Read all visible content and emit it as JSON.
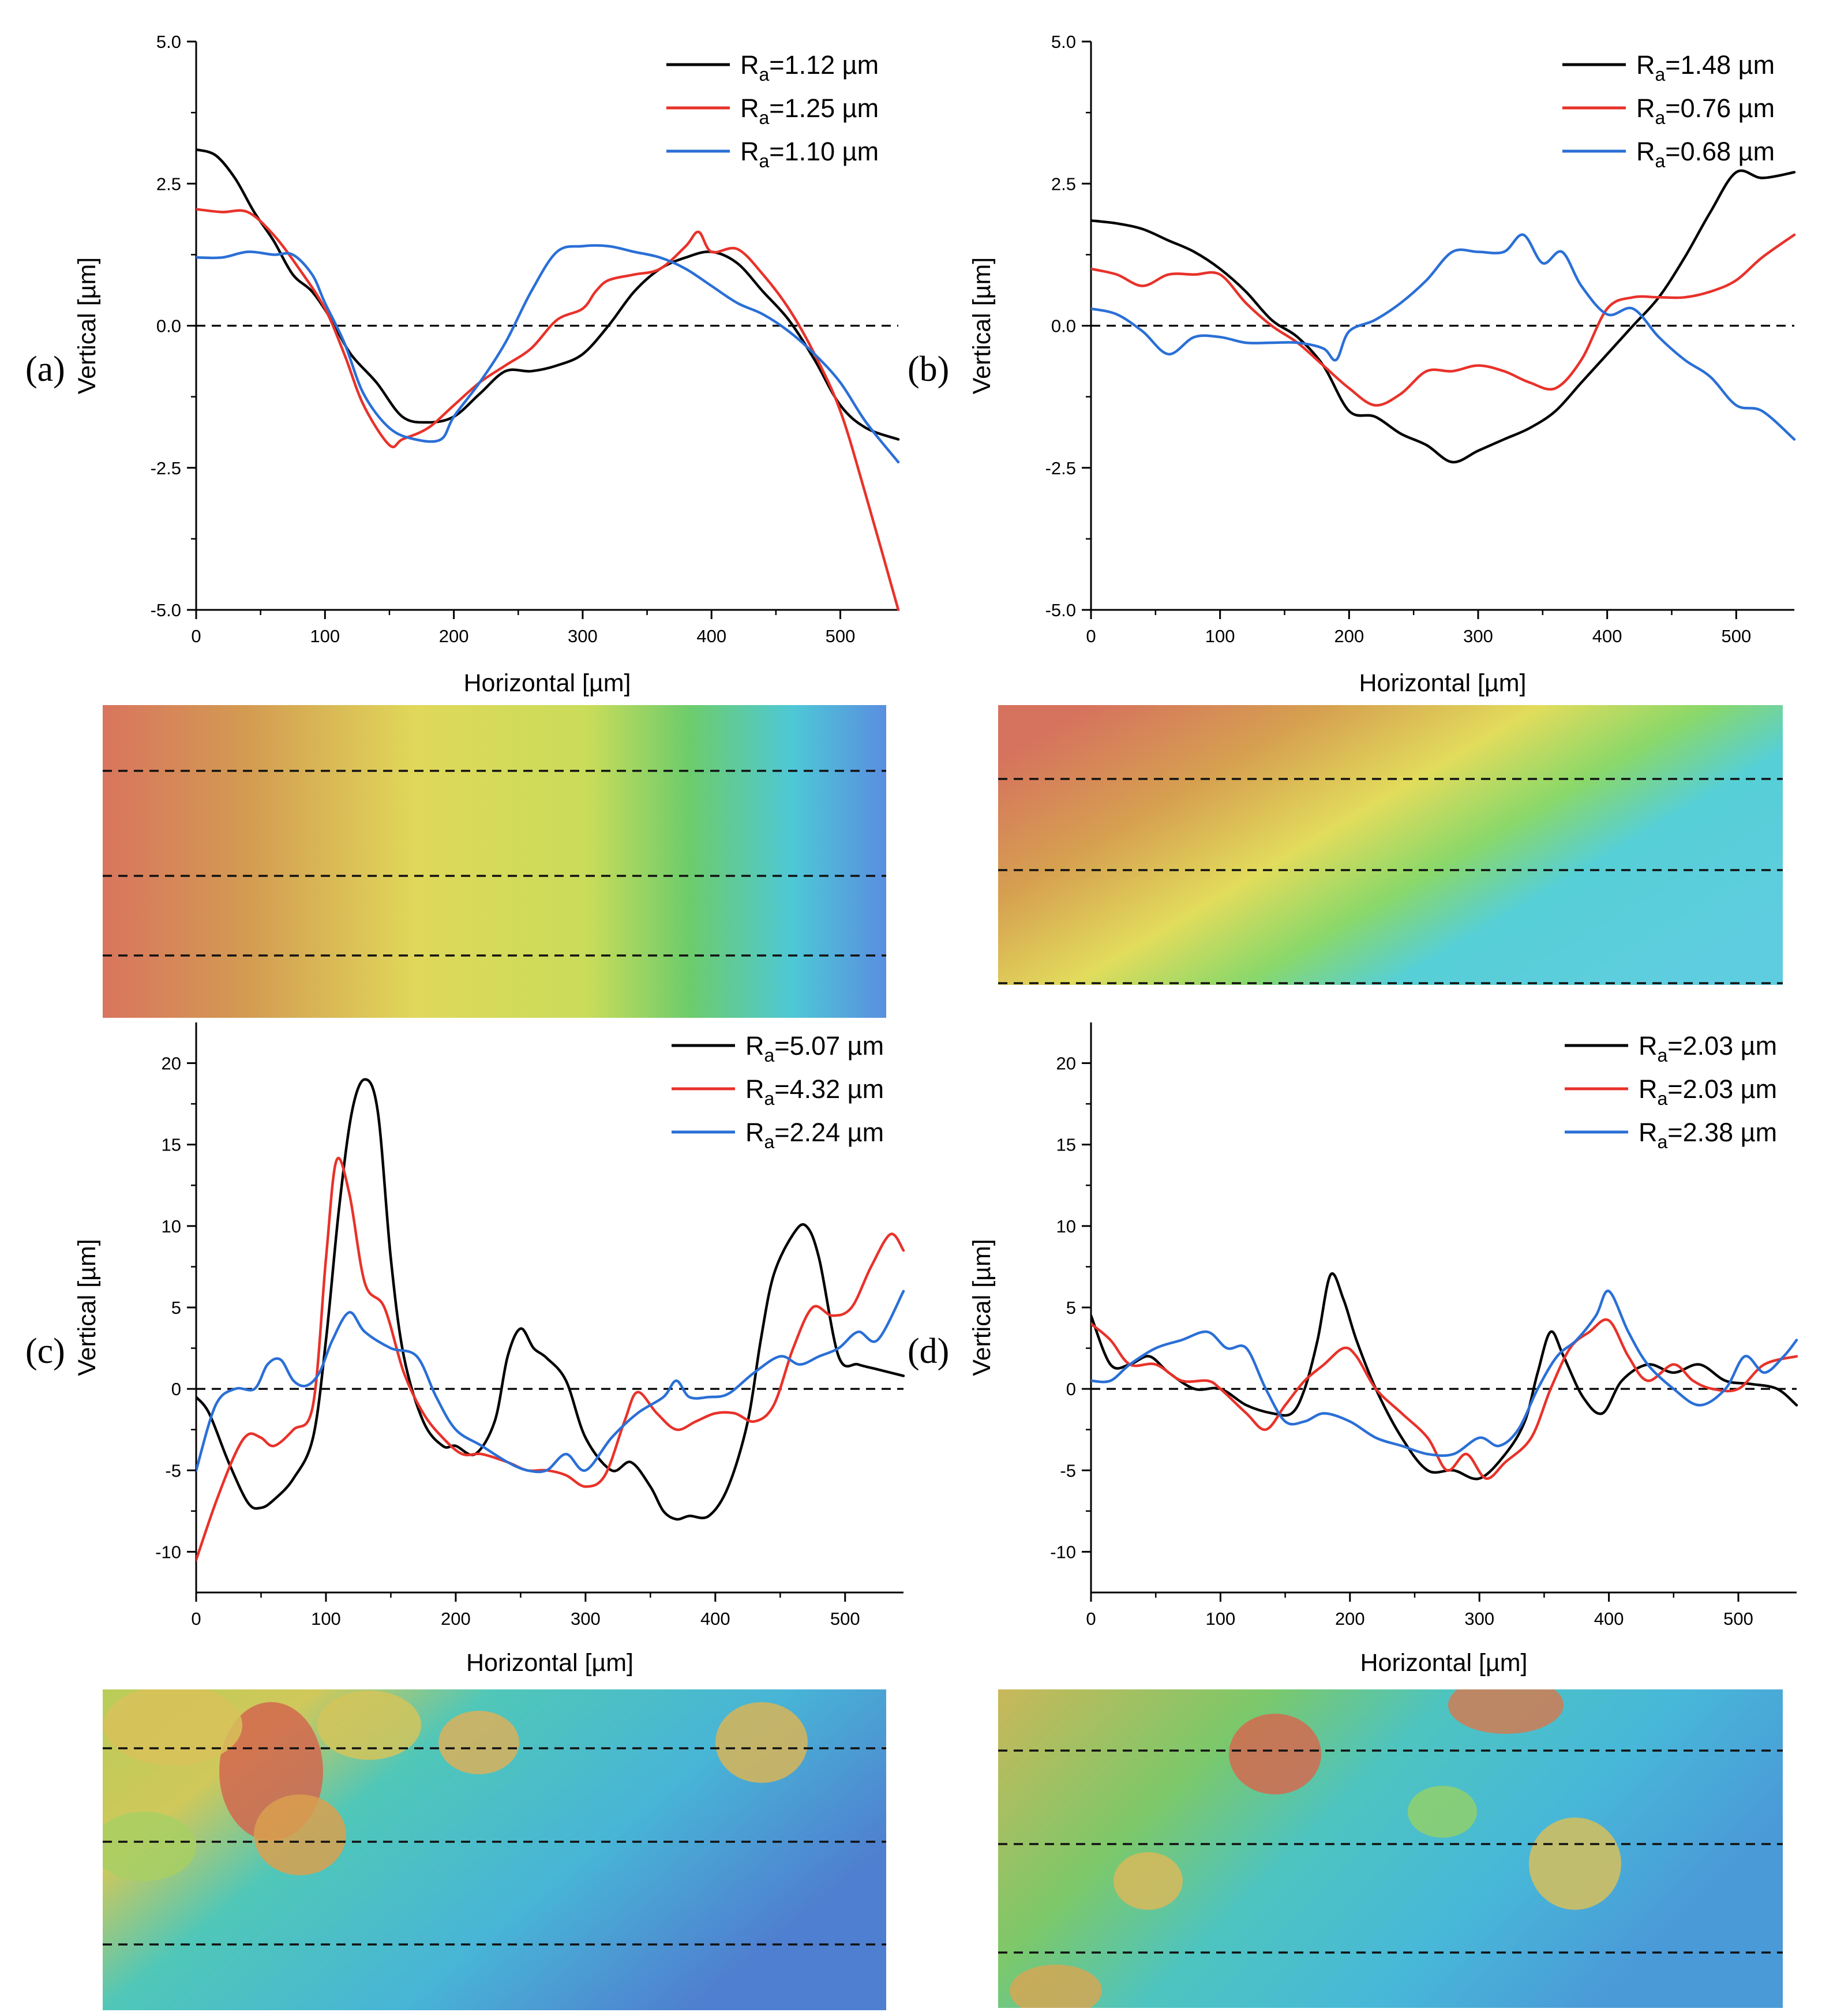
{
  "chart_data": [
    {
      "panel": "(a)",
      "type": "line",
      "xlabel": "Horizontal [µm]",
      "ylabel": "Vertical [µm]",
      "xlim": [
        0,
        545
      ],
      "ylim": [
        -5,
        5
      ],
      "xticks": [
        0,
        100,
        200,
        300,
        400,
        500
      ],
      "yticks": [
        -5,
        -2.5,
        0,
        2.5,
        5
      ],
      "ytick_labels": [
        "-5.0",
        "-2.5",
        "0.0",
        "2.5",
        "5.0"
      ],
      "reference_line": 0,
      "legend_position": "top-right",
      "series": [
        {
          "name": "Ra=1.12 µm",
          "color": "#000000",
          "x": [
            0,
            15,
            30,
            45,
            60,
            75,
            90,
            105,
            120,
            140,
            160,
            180,
            200,
            220,
            240,
            260,
            280,
            300,
            320,
            340,
            360,
            380,
            400,
            420,
            440,
            460,
            480,
            500,
            520,
            545
          ],
          "y": [
            3.1,
            3.0,
            2.6,
            2.0,
            1.5,
            0.9,
            0.6,
            0.1,
            -0.5,
            -1.0,
            -1.6,
            -1.7,
            -1.6,
            -1.2,
            -0.8,
            -0.8,
            -0.7,
            -0.5,
            0.0,
            0.6,
            1.0,
            1.2,
            1.3,
            1.1,
            0.6,
            0.1,
            -0.6,
            -1.4,
            -1.8,
            -2.0
          ]
        },
        {
          "name": "Ra=1.25 µm",
          "color": "#e8322a",
          "x": [
            0,
            20,
            40,
            60,
            80,
            100,
            115,
            130,
            150,
            160,
            180,
            200,
            220,
            240,
            260,
            280,
            300,
            310,
            320,
            340,
            360,
            380,
            390,
            400,
            420,
            440,
            460,
            480,
            500,
            520,
            545
          ],
          "y": [
            2.05,
            2.0,
            2.0,
            1.6,
            1.0,
            0.3,
            -0.5,
            -1.4,
            -2.1,
            -2.0,
            -1.8,
            -1.4,
            -1.0,
            -0.7,
            -0.4,
            0.1,
            0.3,
            0.6,
            0.8,
            0.9,
            1.0,
            1.4,
            1.65,
            1.3,
            1.35,
            0.9,
            0.3,
            -0.5,
            -1.5,
            -3.0,
            -5.0
          ]
        },
        {
          "name": "Ra=1.10 µm",
          "color": "#2a6fd6",
          "x": [
            0,
            20,
            40,
            60,
            75,
            90,
            100,
            115,
            130,
            150,
            170,
            190,
            200,
            220,
            240,
            260,
            280,
            300,
            320,
            340,
            360,
            380,
            400,
            420,
            440,
            460,
            480,
            500,
            520,
            545
          ],
          "y": [
            1.2,
            1.2,
            1.3,
            1.25,
            1.25,
            0.9,
            0.4,
            -0.3,
            -1.2,
            -1.8,
            -2.0,
            -2.0,
            -1.6,
            -1.0,
            -0.3,
            0.6,
            1.3,
            1.4,
            1.4,
            1.3,
            1.2,
            1.0,
            0.7,
            0.4,
            0.2,
            -0.1,
            -0.5,
            -1.0,
            -1.7,
            -2.4
          ]
        }
      ]
    },
    {
      "panel": "(b)",
      "type": "line",
      "xlabel": "Horizontal [µm]",
      "ylabel": "Vertical [µm]",
      "xlim": [
        0,
        545
      ],
      "ylim": [
        -5,
        5
      ],
      "xticks": [
        0,
        100,
        200,
        300,
        400,
        500
      ],
      "yticks": [
        -5,
        -2.5,
        0,
        2.5,
        5
      ],
      "ytick_labels": [
        "-5.0",
        "-2.5",
        "0.0",
        "2.5",
        "5.0"
      ],
      "reference_line": 0,
      "legend_position": "top-right",
      "series": [
        {
          "name": "Ra=1.48 µm",
          "color": "#000000",
          "x": [
            0,
            20,
            40,
            60,
            80,
            100,
            120,
            140,
            160,
            180,
            200,
            220,
            240,
            260,
            280,
            300,
            320,
            340,
            360,
            380,
            400,
            420,
            440,
            460,
            480,
            500,
            520,
            545
          ],
          "y": [
            1.85,
            1.8,
            1.7,
            1.5,
            1.3,
            1.0,
            0.6,
            0.1,
            -0.2,
            -0.7,
            -1.5,
            -1.6,
            -1.9,
            -2.1,
            -2.4,
            -2.2,
            -2.0,
            -1.8,
            -1.5,
            -1.0,
            -0.5,
            0.0,
            0.5,
            1.2,
            2.0,
            2.7,
            2.6,
            2.7
          ]
        },
        {
          "name": "Ra=0.76 µm",
          "color": "#e8322a",
          "x": [
            0,
            20,
            40,
            60,
            80,
            100,
            120,
            140,
            160,
            180,
            200,
            220,
            240,
            260,
            280,
            300,
            320,
            340,
            360,
            380,
            400,
            420,
            440,
            460,
            480,
            500,
            520,
            545
          ],
          "y": [
            1.0,
            0.9,
            0.7,
            0.9,
            0.9,
            0.9,
            0.4,
            0.0,
            -0.3,
            -0.7,
            -1.1,
            -1.4,
            -1.2,
            -0.8,
            -0.8,
            -0.7,
            -0.8,
            -1.0,
            -1.1,
            -0.6,
            0.3,
            0.5,
            0.5,
            0.5,
            0.6,
            0.8,
            1.2,
            1.6
          ]
        },
        {
          "name": "Ra=0.68 µm",
          "color": "#2a6fd6",
          "x": [
            0,
            20,
            40,
            60,
            80,
            100,
            120,
            140,
            160,
            180,
            190,
            200,
            220,
            240,
            260,
            280,
            300,
            320,
            335,
            350,
            365,
            380,
            400,
            420,
            440,
            460,
            480,
            500,
            520,
            545
          ],
          "y": [
            0.3,
            0.2,
            -0.1,
            -0.5,
            -0.2,
            -0.2,
            -0.3,
            -0.3,
            -0.3,
            -0.4,
            -0.6,
            -0.1,
            0.1,
            0.4,
            0.8,
            1.3,
            1.3,
            1.3,
            1.6,
            1.1,
            1.3,
            0.7,
            0.2,
            0.3,
            -0.2,
            -0.6,
            -0.9,
            -1.4,
            -1.5,
            -2.0
          ]
        }
      ]
    },
    {
      "panel": "(c)",
      "type": "line",
      "xlabel": "Horizontal [µm]",
      "ylabel": "Vertical [µm]",
      "xlim": [
        0,
        545
      ],
      "ylim": [
        -12.5,
        22.5
      ],
      "xticks": [
        0,
        100,
        200,
        300,
        400,
        500
      ],
      "yticks": [
        -10,
        -5,
        0,
        5,
        10,
        15,
        20
      ],
      "ytick_labels": [
        "-10",
        "-5",
        "0",
        "5",
        "10",
        "15",
        "20"
      ],
      "reference_line": 0,
      "legend_position": "top-right",
      "series": [
        {
          "name": "Ra=5.07 µm",
          "color": "#000000",
          "x": [
            0,
            10,
            25,
            40,
            50,
            60,
            75,
            90,
            100,
            110,
            120,
            130,
            140,
            150,
            160,
            175,
            190,
            200,
            215,
            230,
            240,
            250,
            260,
            270,
            285,
            300,
            320,
            335,
            350,
            360,
            370,
            380,
            395,
            410,
            425,
            435,
            445,
            460,
            470,
            480,
            495,
            510,
            525,
            545
          ],
          "y": [
            -0.5,
            -1.5,
            -4.5,
            -7.0,
            -7.3,
            -6.8,
            -5.5,
            -3.0,
            3.0,
            11.0,
            17.0,
            19.0,
            17.0,
            8.0,
            2.0,
            -2.0,
            -3.5,
            -3.5,
            -4.0,
            -2.0,
            2.0,
            3.7,
            2.5,
            1.9,
            0.5,
            -3.0,
            -5.0,
            -4.5,
            -6.0,
            -7.5,
            -8.0,
            -7.8,
            -7.8,
            -6.0,
            -2.0,
            3.0,
            7.0,
            9.5,
            10.0,
            8.0,
            2.0,
            1.5,
            1.2,
            0.8
          ]
        },
        {
          "name": "Ra=4.32 µm",
          "color": "#e8322a",
          "x": [
            0,
            15,
            30,
            40,
            50,
            60,
            75,
            90,
            100,
            108,
            118,
            130,
            145,
            160,
            175,
            190,
            205,
            220,
            240,
            255,
            270,
            285,
            300,
            315,
            330,
            340,
            355,
            370,
            385,
            400,
            415,
            430,
            445,
            460,
            475,
            490,
            505,
            520,
            535,
            545
          ],
          "y": [
            -10.5,
            -7.0,
            -4.0,
            -2.8,
            -3.0,
            -3.5,
            -2.5,
            -1.0,
            8.0,
            14.0,
            12.0,
            6.5,
            5.0,
            1.0,
            -1.5,
            -3.0,
            -4.0,
            -4.0,
            -4.5,
            -5.0,
            -5.0,
            -5.3,
            -6.0,
            -5.3,
            -2.0,
            -0.2,
            -1.5,
            -2.5,
            -2.0,
            -1.5,
            -1.5,
            -2.0,
            -1.0,
            2.5,
            5.0,
            4.5,
            5.0,
            7.5,
            9.5,
            8.5
          ]
        },
        {
          "name": "Ra=2.24 µm",
          "color": "#2a6fd6",
          "x": [
            0,
            15,
            30,
            45,
            55,
            65,
            75,
            85,
            95,
            105,
            118,
            130,
            150,
            170,
            185,
            200,
            220,
            240,
            255,
            270,
            285,
            300,
            320,
            340,
            360,
            370,
            380,
            395,
            410,
            430,
            450,
            465,
            480,
            495,
            510,
            525,
            545
          ],
          "y": [
            -5.0,
            -1.0,
            0.0,
            0.0,
            1.5,
            1.8,
            0.5,
            0.2,
            1.0,
            3.0,
            4.7,
            3.5,
            2.5,
            2.0,
            -0.5,
            -2.5,
            -3.5,
            -4.5,
            -5.0,
            -5.0,
            -4.0,
            -5.0,
            -3.0,
            -1.5,
            -0.5,
            0.5,
            -0.5,
            -0.5,
            -0.3,
            1.0,
            2.0,
            1.5,
            2.0,
            2.5,
            3.5,
            3.0,
            6.0
          ]
        }
      ]
    },
    {
      "panel": "(d)",
      "type": "line",
      "xlabel": "Horizontal [µm]",
      "ylabel": "Vertical [µm]",
      "xlim": [
        0,
        545
      ],
      "ylim": [
        -12.5,
        22.5
      ],
      "xticks": [
        0,
        100,
        200,
        300,
        400,
        500
      ],
      "yticks": [
        -10,
        -5,
        0,
        5,
        10,
        15,
        20
      ],
      "ytick_labels": [
        "-10",
        "-5",
        "0",
        "5",
        "10",
        "15",
        "20"
      ],
      "reference_line": 0,
      "legend_position": "top-right",
      "series": [
        {
          "name": "Ra=2.03 µm",
          "color": "#000000",
          "x": [
            0,
            15,
            30,
            45,
            60,
            80,
            100,
            120,
            140,
            155,
            165,
            175,
            185,
            195,
            205,
            220,
            240,
            260,
            280,
            300,
            320,
            335,
            345,
            355,
            365,
            380,
            395,
            410,
            430,
            450,
            470,
            490,
            510,
            530,
            545
          ],
          "y": [
            4.5,
            1.5,
            1.5,
            2.0,
            1.0,
            0.0,
            0.0,
            -1.0,
            -1.5,
            -1.5,
            0.0,
            3.0,
            7.0,
            5.5,
            3.0,
            0.0,
            -3.0,
            -5.0,
            -5.0,
            -5.5,
            -4.0,
            -2.0,
            1.0,
            3.5,
            2.0,
            -0.5,
            -1.5,
            0.5,
            1.5,
            1.0,
            1.5,
            0.5,
            0.3,
            0.0,
            -1.0
          ]
        },
        {
          "name": "Ra=2.03 µm",
          "color": "#e8322a",
          "x": [
            0,
            15,
            30,
            50,
            70,
            90,
            100,
            120,
            135,
            150,
            165,
            180,
            195,
            205,
            220,
            240,
            260,
            275,
            290,
            305,
            320,
            340,
            355,
            370,
            385,
            400,
            415,
            430,
            450,
            465,
            480,
            500,
            520,
            545
          ],
          "y": [
            4.0,
            3.0,
            1.5,
            1.5,
            0.5,
            0.5,
            0.0,
            -1.5,
            -2.5,
            -1.0,
            0.5,
            1.5,
            2.5,
            2.0,
            0.0,
            -1.5,
            -3.0,
            -5.0,
            -4.0,
            -5.5,
            -4.5,
            -3.0,
            0.0,
            2.5,
            3.5,
            4.2,
            2.0,
            0.5,
            1.5,
            0.5,
            0.0,
            0.0,
            1.5,
            2.0
          ]
        },
        {
          "name": "Ra=2.38 µm",
          "color": "#2a6fd6",
          "x": [
            0,
            15,
            30,
            50,
            70,
            90,
            105,
            120,
            135,
            150,
            165,
            180,
            200,
            220,
            240,
            260,
            280,
            300,
            315,
            330,
            345,
            360,
            375,
            390,
            400,
            415,
            430,
            450,
            470,
            490,
            505,
            520,
            535,
            545
          ],
          "y": [
            0.5,
            0.5,
            1.5,
            2.5,
            3.0,
            3.5,
            2.5,
            2.5,
            0.0,
            -2.0,
            -2.0,
            -1.5,
            -2.0,
            -3.0,
            -3.5,
            -4.0,
            -4.0,
            -3.0,
            -3.5,
            -2.5,
            0.0,
            2.0,
            3.0,
            4.5,
            6.0,
            3.5,
            1.5,
            0.0,
            -1.0,
            0.0,
            2.0,
            1.0,
            2.0,
            3.0
          ]
        }
      ]
    }
  ]
}
